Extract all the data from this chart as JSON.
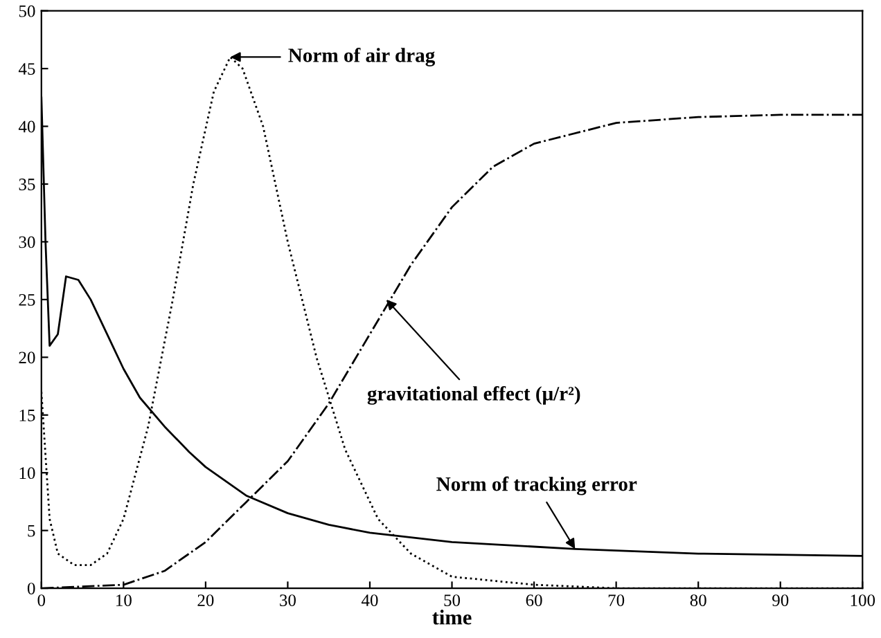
{
  "chart_data": {
    "type": "line",
    "xlabel": "time",
    "xlim": [
      0,
      100
    ],
    "ylim": [
      0,
      50
    ],
    "xticks": [
      0,
      10,
      20,
      30,
      40,
      50,
      60,
      70,
      80,
      90,
      100
    ],
    "yticks": [
      0,
      5,
      10,
      15,
      20,
      25,
      30,
      35,
      40,
      45,
      50
    ],
    "grid": false,
    "marker": "none",
    "series": [
      {
        "color": "#000000",
        "line_style": "solid",
        "x": [
          0,
          0.5,
          1,
          2,
          3,
          4.5,
          6,
          8,
          10,
          12,
          15,
          18,
          20,
          25,
          30,
          35,
          40,
          50,
          65,
          80,
          100
        ],
        "values": [
          42.5,
          30,
          21,
          22,
          27,
          26.7,
          25,
          22,
          19,
          16.5,
          14,
          11.8,
          10.5,
          8,
          6.5,
          5.5,
          4.8,
          4,
          3.4,
          3,
          2.8
        ]
      },
      {
        "color": "#000000",
        "line_style": "dotted",
        "x": [
          0,
          1,
          2,
          4,
          6,
          8,
          10,
          13,
          16,
          18.5,
          21,
          23,
          24.5,
          27,
          30,
          33.5,
          37,
          41,
          45,
          50,
          60,
          70,
          100
        ],
        "values": [
          17,
          6,
          3,
          2,
          2,
          3,
          6,
          14,
          25,
          35,
          43,
          46,
          45,
          40,
          30,
          20,
          12,
          6,
          3,
          1,
          0.3,
          0,
          0
        ]
      },
      {
        "color": "#000000",
        "line_style": "dashdot",
        "x": [
          0,
          10,
          15,
          20,
          25,
          30,
          35,
          40,
          45,
          50,
          55,
          60,
          70,
          80,
          90,
          100
        ],
        "values": [
          0,
          0.3,
          1.5,
          4,
          7.5,
          11,
          16,
          22,
          28,
          33,
          36.5,
          38.5,
          40.3,
          40.8,
          41,
          41
        ]
      }
    ],
    "annotations": [
      {
        "text": "Norm of air drag",
        "x": 23,
        "y": 46
      },
      {
        "text": "gravitational effect (μ/r²)",
        "x": 42,
        "y": 25
      },
      {
        "text": "Norm of tracking error",
        "x": 65,
        "y": 3.4
      }
    ]
  }
}
